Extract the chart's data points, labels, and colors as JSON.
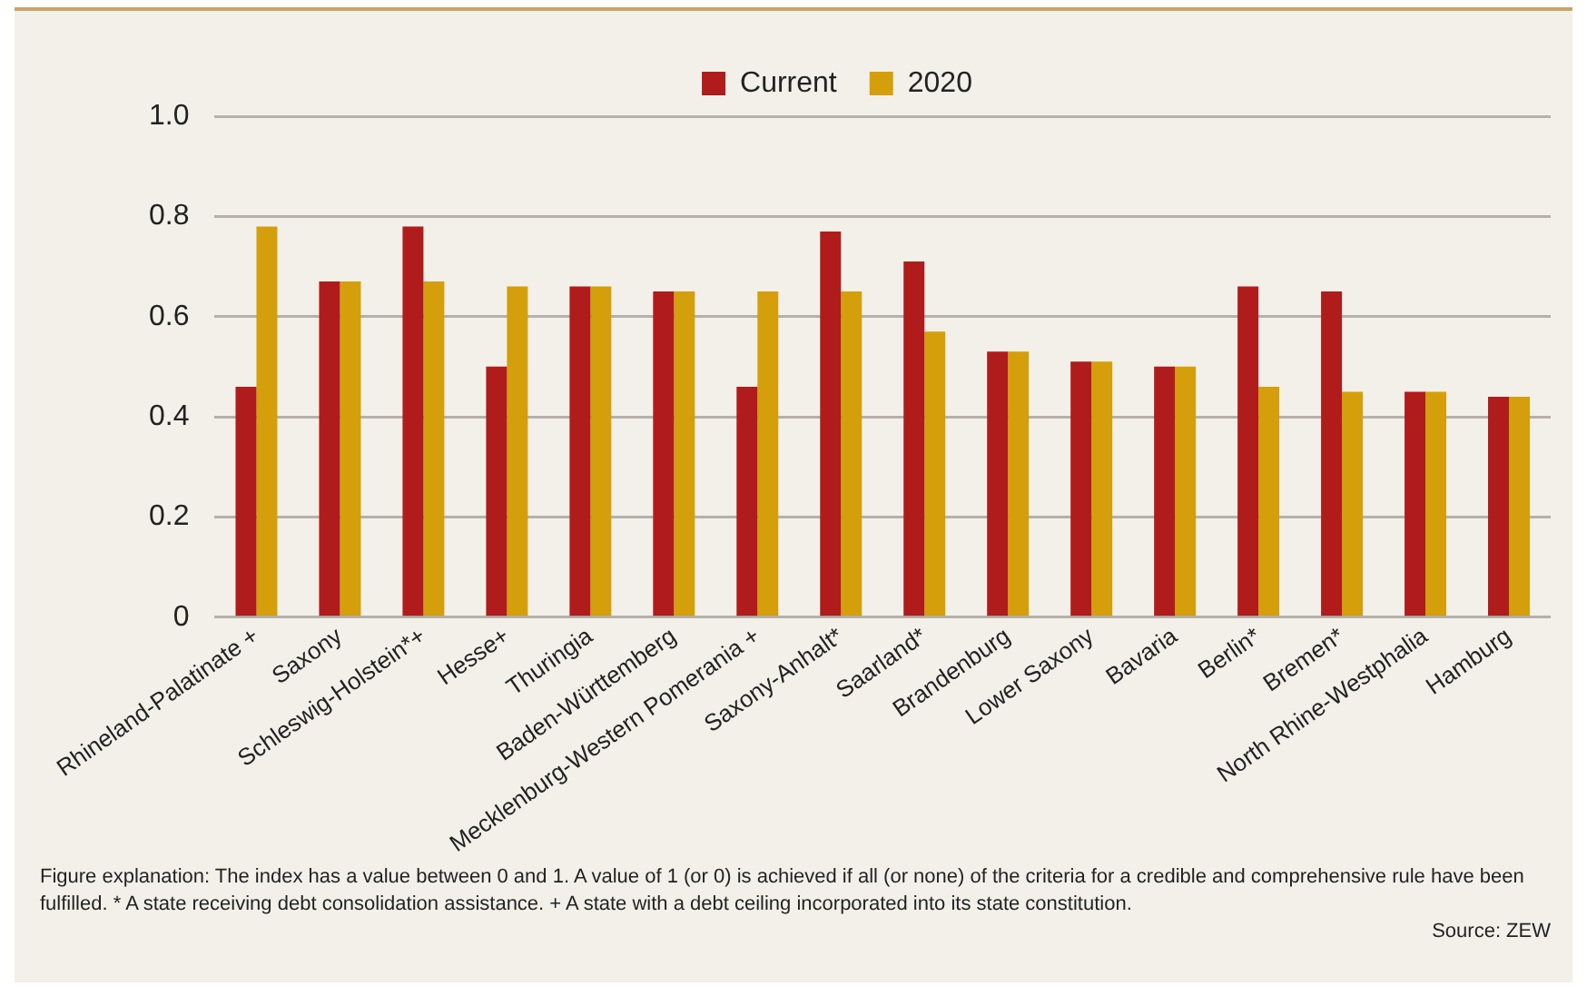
{
  "chart_data": {
    "type": "bar",
    "categories": [
      "Rhineland-Palatinate +",
      "Saxony",
      "Schleswig-Holstein*+",
      "Hesse+",
      "Thuringia",
      "Baden-Württemberg",
      "Mecklenburg-Western Pomerania +",
      "Saxony-Anhalt*",
      "Saarland*",
      "Brandenburg",
      "Lower Saxony",
      "Bavaria",
      "Berlin*",
      "Bremen*",
      "North Rhine-Westphalia",
      "Hamburg"
    ],
    "series": [
      {
        "name": "Current",
        "color": "#b01c1c",
        "values": [
          0.46,
          0.67,
          0.78,
          0.5,
          0.66,
          0.65,
          0.46,
          0.77,
          0.71,
          0.53,
          0.51,
          0.5,
          0.66,
          0.65,
          0.45,
          0.44
        ]
      },
      {
        "name": "2020",
        "color": "#d49f0a",
        "values": [
          0.78,
          0.67,
          0.67,
          0.66,
          0.66,
          0.65,
          0.65,
          0.65,
          0.57,
          0.53,
          0.51,
          0.5,
          0.46,
          0.45,
          0.45,
          0.44
        ]
      }
    ],
    "ylim": [
      0,
      1
    ],
    "yticks": [
      0,
      {
        "value": 0.2,
        "label": "0.2"
      },
      {
        "value": 0.4,
        "label": "0.4"
      },
      {
        "value": 0.6,
        "label": "0.6"
      },
      {
        "value": 0.8,
        "label": "0.8"
      },
      {
        "value": 1,
        "label": "1.0"
      }
    ],
    "grid": "y",
    "legend": "top",
    "annotations": [
      "Figure explanation: The index has a value between 0 and 1. A value of 1 (or 0) is achieved if all (or none) of the criteria for a credible and comprehensive rule have been fulfilled. * A state receiving debt consolidation assistance. + A state with a debt ceiling incorporated into its state constitution.",
      "Source: ZEW"
    ]
  }
}
